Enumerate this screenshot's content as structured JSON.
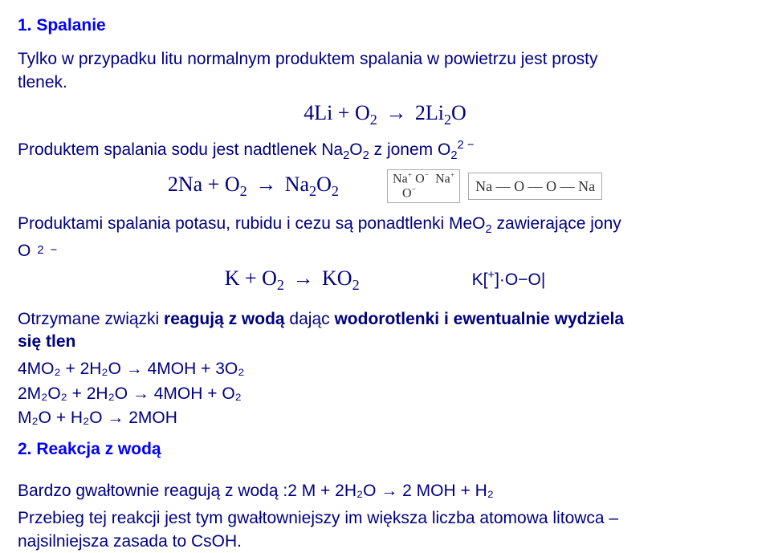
{
  "title1": "1. Spalanie",
  "p1a": "Tylko w przypadku litu normalnym produktem spalania w powietrzu jest prosty",
  "p1b": "tlenek.",
  "eq1_lhs": "4Li + O",
  "eq1_rhs": "2Li",
  "eq1_prod_sub": "2",
  "eq1_prod_suffix": "O",
  "p2_pre": "Produktem spalania sodu jest nadtlenek Na",
  "p2_mid": "O",
  "p2_after": " z jonem O",
  "eq2_lhs": "2Na + O",
  "eq2_rhs": "Na",
  "eq2_rhs_sub": "2",
  "eq2_rhs_suffix": "O",
  "chem_box1_l1": "Na",
  "chem_box1_o": "O",
  "chem_box1_minus": "−",
  "chem_box2": "Na — O — O — Na",
  "p3": "Produktami spalania potasu, rubidu i cezu są ponadtlenki MeO",
  "p3_suffix": "  zawierające jony",
  "o2_label": "O",
  "eq3_lhs": "K + O",
  "eq3_rhs": "KO",
  "ko2_label_pre": "K[",
  "ko2_label_post": "]·O−O|",
  "p4a": "Otrzymane związki ",
  "p4bold": "reagują z wodą",
  "p4b": " dając ",
  "p4bold2": "wodorotlenki i ewentualnie wydziela",
  "p4c": "się tlen",
  "r1": "4MO₂ + 2H₂O → 4MOH + 3O₂",
  "r2": "2M₂O₂ + 2H₂O  → 4MOH + O₂",
  "r3": "M₂O + H₂O  → 2MOH",
  "title2": "2. Reakcja z wodą",
  "p5": "Bardzo gwałtownie reagują z wodą :2 M + 2H₂O → 2 MOH + H₂",
  "p6": "Przebieg tej reakcji jest tym gwałtowniejszy im większa liczba atomowa litowca –",
  "p7": "najsilniejsza zasada to CsOH.",
  "sub2": "2",
  "sup2minus": "2 −",
  "supminus": "−",
  "supplus": "+"
}
